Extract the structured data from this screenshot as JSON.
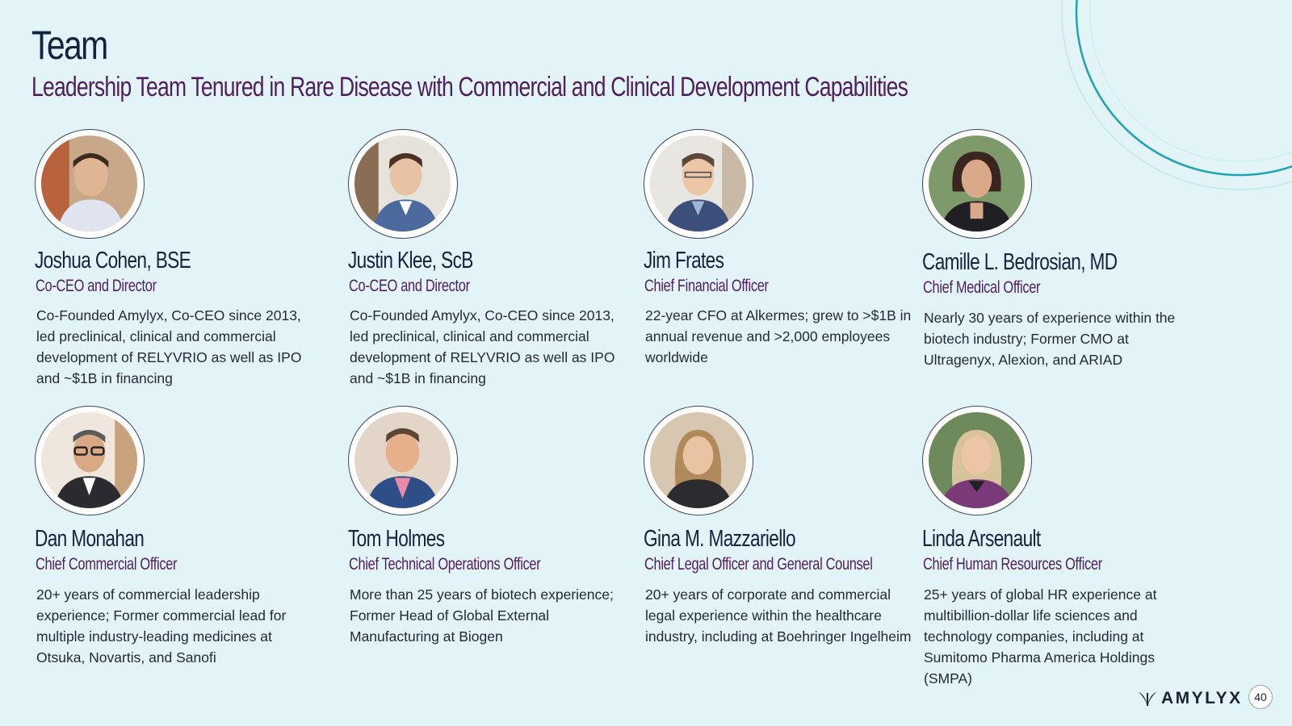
{
  "slide": {
    "title": "Team",
    "subtitle": "Leadership Team Tenured in Rare Disease with Commercial and Clinical Development Capabilities",
    "page_number": "40"
  },
  "brand": {
    "logo_text": "AMYLYX",
    "logo_mark": "amylyx-leaf-icon",
    "colors": {
      "background": "#e3f4f9",
      "title": "#13233f",
      "accent_purple": "#4f1e5e",
      "accent_teal": "#1ea3b0"
    }
  },
  "members": [
    {
      "name": "Joshua Cohen, BSE",
      "role": "Co-CEO and Director",
      "bio": "Co-Founded Amylyx, Co-CEO since 2013, led preclinical, clinical and commercial development of RELYVRIO as well as IPO and ~$1B in financing",
      "photo": "portrait-photo"
    },
    {
      "name": "Justin Klee, ScB",
      "role": "Co-CEO and Director",
      "bio": "Co-Founded Amylyx, Co-CEO since 2013, led preclinical, clinical and commercial development of RELYVRIO as well as IPO and ~$1B in financing",
      "photo": "portrait-photo"
    },
    {
      "name": "Jim Frates",
      "role": "Chief Financial Officer",
      "bio": "22-year CFO at Alkermes; grew to >$1B in annual revenue and >2,000 employees worldwide",
      "photo": "portrait-photo"
    },
    {
      "name": "Camille L. Bedrosian, MD",
      "role": "Chief Medical Officer",
      "bio": "Nearly 30 years of experience within the biotech industry; Former CMO at Ultragenyx, Alexion, and ARIAD",
      "photo": "portrait-photo"
    },
    {
      "name": "Dan Monahan",
      "role": "Chief Commercial Officer",
      "bio": "20+ years of commercial leadership experience; Former commercial lead for multiple industry-leading medicines at Otsuka, Novartis, and Sanofi",
      "photo": "portrait-photo"
    },
    {
      "name": "Tom Holmes",
      "role": "Chief Technical Operations Officer",
      "bio": "More than 25 years of biotech experience; Former Head of Global External Manufacturing at Biogen",
      "photo": "portrait-photo"
    },
    {
      "name": "Gina M. Mazzariello",
      "role": "Chief Legal Officer and General Counsel",
      "bio": "20+ years of corporate and commercial legal experience within the healthcare industry, including at Boehringer Ingelheim",
      "photo": "portrait-photo"
    },
    {
      "name": "Linda Arsenault",
      "role": "Chief Human Resources Officer",
      "bio": "25+ years of global HR experience at multibillion-dollar life sciences and technology companies, including at Sumitomo Pharma America Holdings (SMPA)",
      "photo": "portrait-photo"
    }
  ]
}
